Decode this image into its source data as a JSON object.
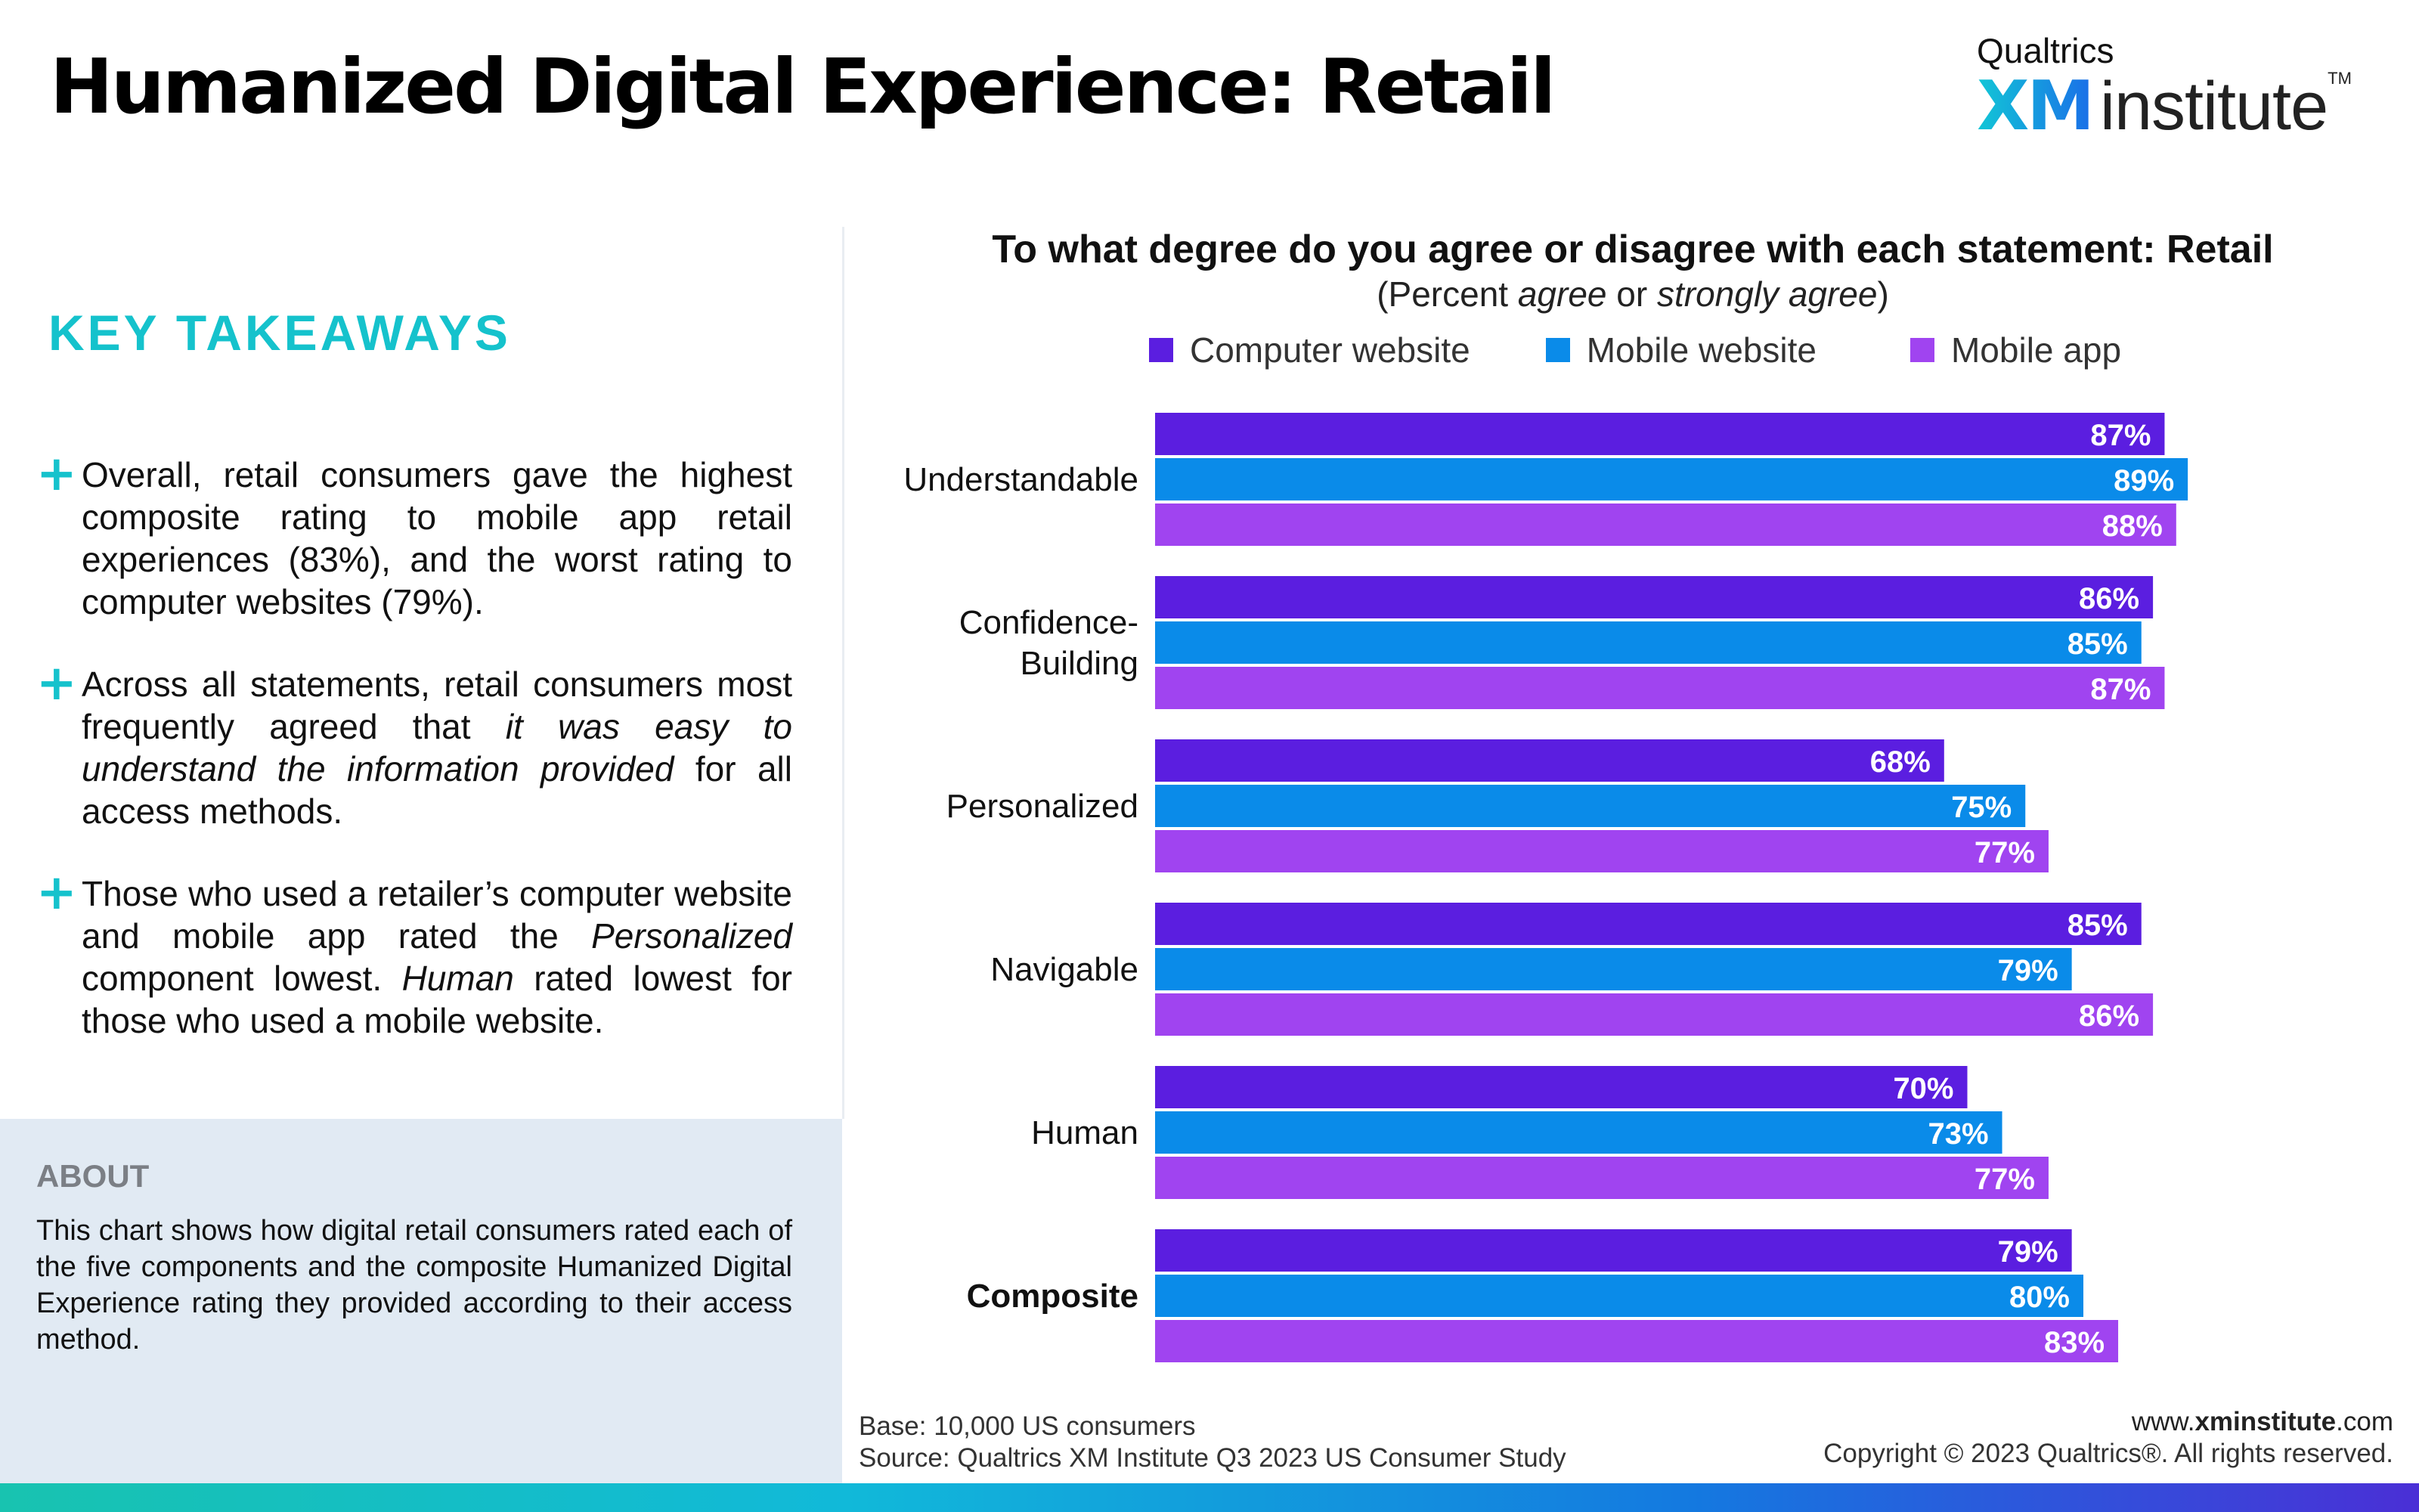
{
  "title": "Humanized Digital Experience: Retail",
  "brand": {
    "top": "Qualtrics",
    "xm": "XM",
    "institute": "institute",
    "tm": "TM"
  },
  "takeaways": {
    "heading": "KEY TAKEAWAYS",
    "items": [
      {
        "parts": [
          {
            "text": "Overall, retail consumers gave the highest composite rating to mobile app retail experiences (83%), and the worst rating to computer websites (79%)."
          }
        ]
      },
      {
        "parts": [
          {
            "text": "Across all statements, retail consumers most frequently agreed that "
          },
          {
            "text": "it was easy to understand the information provided",
            "italic": true
          },
          {
            "text": " for all access methods."
          }
        ]
      },
      {
        "parts": [
          {
            "text": "Those who used a retailer’s computer website and mobile app rated the "
          },
          {
            "text": "Personalized",
            "italic": true
          },
          {
            "text": " component lowest. "
          },
          {
            "text": "Human",
            "italic": true
          },
          {
            "text": " rated lowest for those who used a mobile website."
          }
        ]
      }
    ]
  },
  "about": {
    "label": "ABOUT",
    "text": "This chart shows how digital retail consumers rated each of the five components and the composite Humanized Digital Experience rating they provided according to their access method."
  },
  "chart_data": {
    "type": "bar",
    "orientation": "horizontal",
    "title": "To what degree do you agree or disagree with each statement: Retail",
    "subtitle": {
      "parts": [
        {
          "text": "(Percent "
        },
        {
          "text": "agree",
          "italic": true
        },
        {
          "text": " or "
        },
        {
          "text": "strongly agree",
          "italic": true
        },
        {
          "text": ")"
        }
      ]
    },
    "categories": [
      "Understandable",
      "Confidence-\nBuilding",
      "Personalized",
      "Navigable",
      "Human",
      "Composite"
    ],
    "bold_categories": [
      "Composite"
    ],
    "xlim": [
      0,
      100
    ],
    "value_suffix": "%",
    "legend_position": "top",
    "series": [
      {
        "name": "Computer website",
        "color": "#5b1ee0",
        "values": [
          87,
          86,
          68,
          85,
          70,
          79
        ]
      },
      {
        "name": "Mobile website",
        "color": "#0a8be9",
        "values": [
          89,
          85,
          75,
          79,
          73,
          80
        ]
      },
      {
        "name": "Mobile app",
        "color": "#a044f0",
        "values": [
          88,
          87,
          77,
          86,
          77,
          83
        ]
      }
    ]
  },
  "footer": {
    "base": "Base: 10,000 US consumers",
    "source": "Source: Qualtrics XM Institute Q3 2023 US Consumer Study",
    "url_prefix": "www.",
    "url_bold": "xminstitute",
    "url_suffix": ".com",
    "copyright": "Copyright © 2023 Qualtrics®. All rights reserved."
  }
}
